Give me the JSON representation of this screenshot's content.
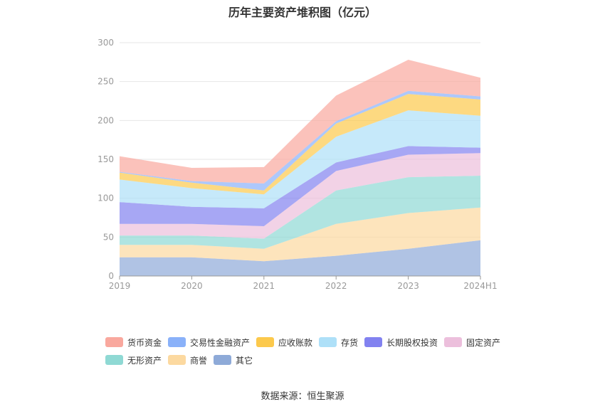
{
  "title": "历年主要资产堆积图（亿元）",
  "source": "数据来源：恒生聚源",
  "chart_data": {
    "type": "area",
    "stacked": true,
    "categories": [
      "2019",
      "2020",
      "2021",
      "2022",
      "2023",
      "2024H1"
    ],
    "ylim": [
      0,
      300
    ],
    "yticks": [
      0,
      50,
      100,
      150,
      200,
      250,
      300
    ],
    "grid": true,
    "legend_position": "bottom",
    "series": [
      {
        "name": "其它",
        "color": "#8eaad8",
        "values": [
          24,
          24,
          19,
          26,
          35,
          46
        ]
      },
      {
        "name": "商誉",
        "color": "#fcd9a0",
        "values": [
          16,
          16,
          16,
          41,
          46,
          42
        ]
      },
      {
        "name": "无形资产",
        "color": "#8fd9d4",
        "values": [
          12,
          12,
          13,
          43,
          46,
          41
        ]
      },
      {
        "name": "固定资产",
        "color": "#ecbfdc",
        "values": [
          15,
          15,
          16,
          25,
          29,
          29
        ]
      },
      {
        "name": "长期股权投资",
        "color": "#8282f0",
        "values": [
          28,
          22,
          23,
          11,
          11,
          7
        ]
      },
      {
        "name": "存货",
        "color": "#aee0f8",
        "values": [
          29,
          24,
          18,
          33,
          46,
          41
        ]
      },
      {
        "name": "应收账款",
        "color": "#fcc94c",
        "values": [
          9,
          7,
          5,
          17,
          21,
          21
        ]
      },
      {
        "name": "交易性金融资产",
        "color": "#8ab1f9",
        "values": [
          1,
          2,
          9,
          3,
          4,
          4
        ]
      },
      {
        "name": "货币资金",
        "color": "#f9a89e",
        "values": [
          20,
          17,
          21,
          33,
          40,
          24
        ]
      }
    ]
  },
  "legend_order": [
    "货币资金",
    "交易性金融资产",
    "应收账款",
    "存货",
    "长期股权投资",
    "固定资产",
    "无形资产",
    "商誉",
    "其它"
  ]
}
